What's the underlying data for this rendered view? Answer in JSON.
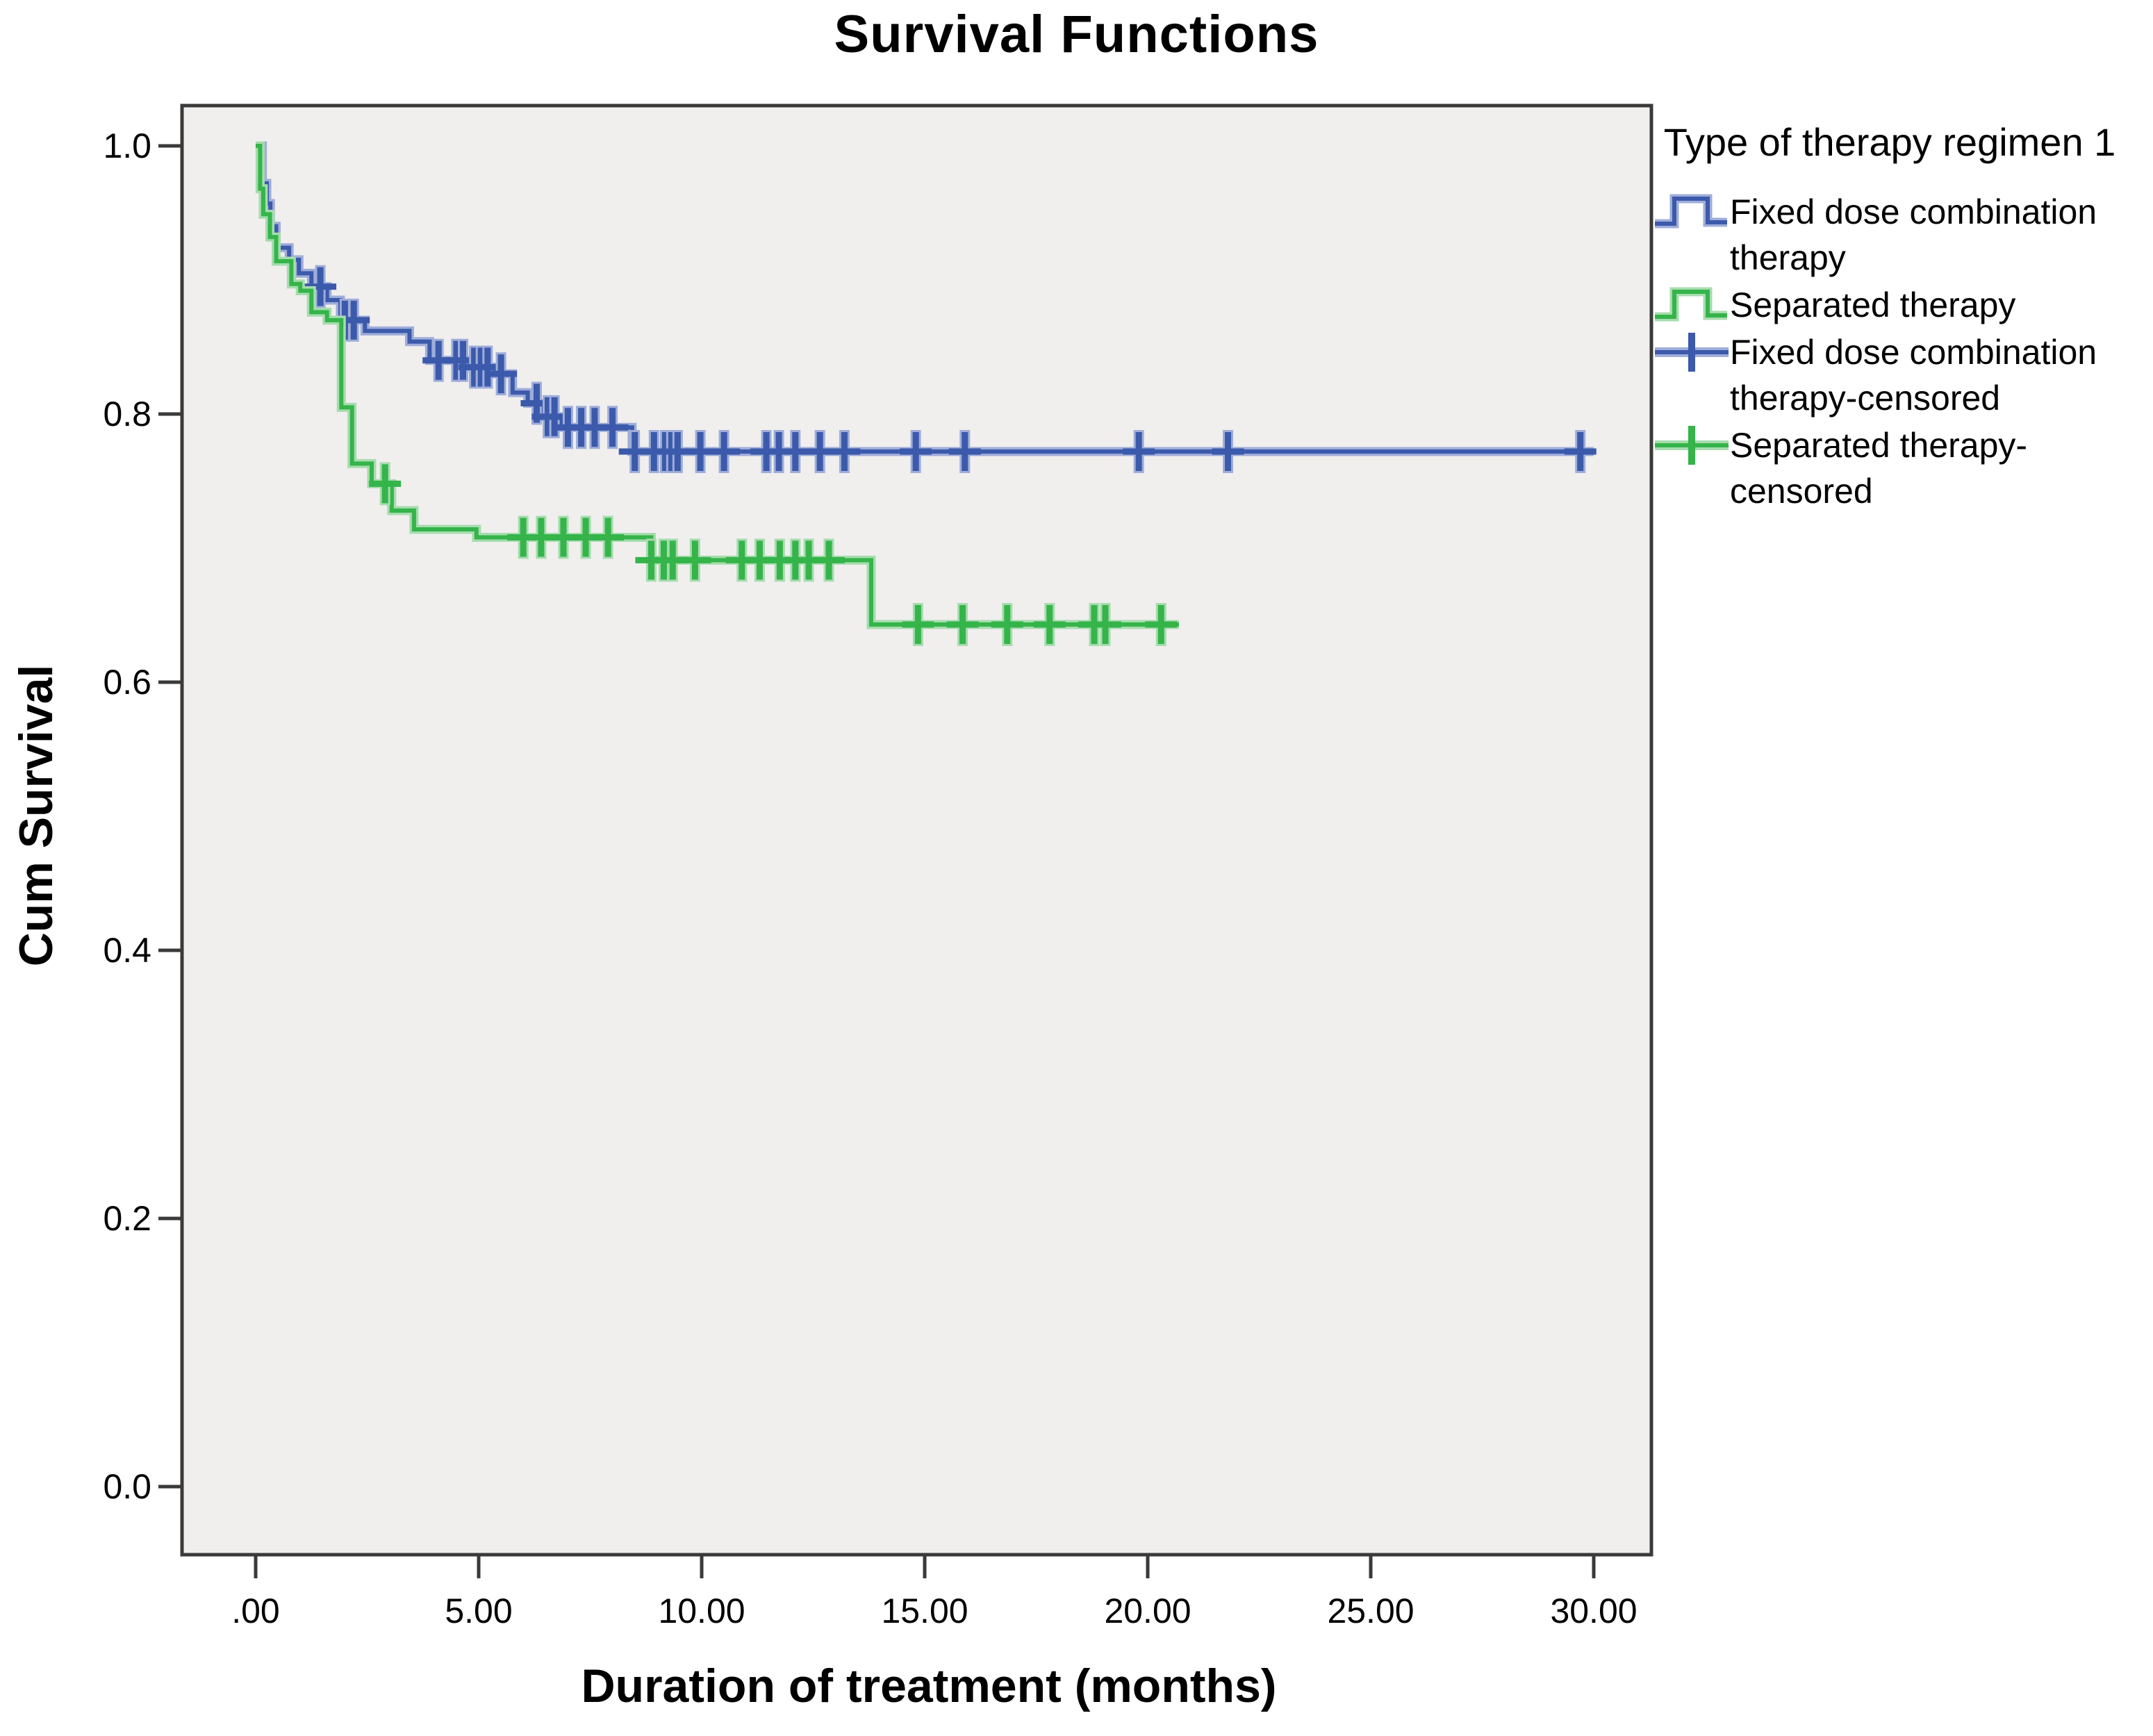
{
  "title": "Survival Functions",
  "axes": {
    "x_label": "Duration of treatment (months)",
    "y_label": "Cum Survival",
    "x_tick_labels": [
      ".00",
      "5.00",
      "10.00",
      "15.00",
      "20.00",
      "25.00",
      "30.00"
    ],
    "x_tick_values": [
      0,
      5,
      10,
      15,
      20,
      25,
      30
    ],
    "y_tick_labels": [
      "0.0",
      "0.2",
      "0.4",
      "0.6",
      "0.8",
      "1.0"
    ],
    "y_tick_values": [
      0,
      0.2,
      0.4,
      0.6,
      0.8,
      1.0
    ]
  },
  "legend": {
    "title": "Type of therapy regimen 1",
    "items": [
      {
        "label": "Fixed dose combination therapy",
        "glyph": "step-line",
        "series": 0
      },
      {
        "label": "Separated therapy",
        "glyph": "step-line",
        "series": 1
      },
      {
        "label": "Fixed dose combination therapy-censored",
        "glyph": "plus-marker",
        "series": 0
      },
      {
        "label": "Separated therapy-censored",
        "glyph": "plus-marker",
        "series": 1
      }
    ]
  },
  "colors": {
    "blue_core": "#3c5aab",
    "blue_halo": "#9fadd9",
    "green_core": "#35b44a",
    "green_halo": "#a6dcae",
    "frame": "#3a3a3a",
    "plot_bg": "#f0efee",
    "text": "#000000"
  },
  "chart_data": {
    "type": "line",
    "subtype": "kaplan-meier-step",
    "title": "Survival Functions",
    "xlabel": "Duration of treatment (months)",
    "ylabel": "Cum Survival",
    "xlim": [
      0,
      30
    ],
    "ylim": [
      0,
      1.0
    ],
    "x_ticks": [
      0,
      5,
      10,
      15,
      20,
      25,
      30
    ],
    "y_ticks": [
      0,
      0.2,
      0.4,
      0.6,
      0.8,
      1.0
    ],
    "grid": false,
    "legend_position": "right",
    "series": [
      {
        "name": "Fixed dose combination therapy",
        "color": "#3c5aab",
        "halo": "#9fadd9",
        "end_t": 30.0,
        "steps": [
          [
            0,
            1.0
          ],
          [
            0.15,
            0.972
          ],
          [
            0.25,
            0.957
          ],
          [
            0.33,
            0.94
          ],
          [
            0.46,
            0.924
          ],
          [
            0.75,
            0.915
          ],
          [
            0.97,
            0.905
          ],
          [
            1.25,
            0.895
          ],
          [
            1.6,
            0.885
          ],
          [
            1.9,
            0.87
          ],
          [
            2.45,
            0.862
          ],
          [
            3.45,
            0.854
          ],
          [
            3.9,
            0.84
          ],
          [
            4.8,
            0.835
          ],
          [
            5.35,
            0.83
          ],
          [
            5.76,
            0.816
          ],
          [
            6.1,
            0.808
          ],
          [
            6.45,
            0.798
          ],
          [
            6.85,
            0.79
          ],
          [
            8.44,
            0.772
          ]
        ],
        "censors": [
          [
            1.45,
            0.895
          ],
          [
            2.0,
            0.87
          ],
          [
            2.2,
            0.87
          ],
          [
            4.1,
            0.84
          ],
          [
            4.5,
            0.84
          ],
          [
            4.65,
            0.84
          ],
          [
            4.9,
            0.835
          ],
          [
            5.05,
            0.835
          ],
          [
            5.2,
            0.835
          ],
          [
            5.5,
            0.83
          ],
          [
            6.3,
            0.808
          ],
          [
            6.55,
            0.798
          ],
          [
            6.7,
            0.798
          ],
          [
            7.0,
            0.79
          ],
          [
            7.3,
            0.79
          ],
          [
            7.6,
            0.79
          ],
          [
            8.0,
            0.79
          ],
          [
            8.5,
            0.772
          ],
          [
            8.93,
            0.772
          ],
          [
            9.18,
            0.772
          ],
          [
            9.32,
            0.772
          ],
          [
            9.46,
            0.772
          ],
          [
            9.97,
            0.772
          ],
          [
            10.5,
            0.772
          ],
          [
            11.45,
            0.772
          ],
          [
            11.73,
            0.772
          ],
          [
            12.1,
            0.772
          ],
          [
            12.65,
            0.772
          ],
          [
            13.2,
            0.772
          ],
          [
            14.8,
            0.772
          ],
          [
            15.9,
            0.772
          ],
          [
            19.8,
            0.772
          ],
          [
            21.8,
            0.772
          ],
          [
            29.7,
            0.772
          ]
        ]
      },
      {
        "name": "Separated therapy",
        "color": "#35b44a",
        "halo": "#a6dcae",
        "end_t": 20.7,
        "steps": [
          [
            0,
            1.0
          ],
          [
            0.1,
            0.968
          ],
          [
            0.17,
            0.949
          ],
          [
            0.32,
            0.932
          ],
          [
            0.46,
            0.914
          ],
          [
            0.8,
            0.897
          ],
          [
            1.0,
            0.892
          ],
          [
            1.25,
            0.876
          ],
          [
            1.6,
            0.87
          ],
          [
            1.92,
            0.805
          ],
          [
            2.16,
            0.763
          ],
          [
            2.6,
            0.748
          ],
          [
            3.05,
            0.728
          ],
          [
            3.55,
            0.714
          ],
          [
            4.95,
            0.708
          ],
          [
            8.87,
            0.691
          ],
          [
            13.8,
            0.643
          ]
        ],
        "censors": [
          [
            2.9,
            0.748
          ],
          [
            6.0,
            0.708
          ],
          [
            6.4,
            0.708
          ],
          [
            6.9,
            0.708
          ],
          [
            7.4,
            0.708
          ],
          [
            7.9,
            0.708
          ],
          [
            8.87,
            0.691
          ],
          [
            9.15,
            0.691
          ],
          [
            9.35,
            0.691
          ],
          [
            9.85,
            0.691
          ],
          [
            10.9,
            0.691
          ],
          [
            11.3,
            0.691
          ],
          [
            11.75,
            0.691
          ],
          [
            12.1,
            0.691
          ],
          [
            12.4,
            0.691
          ],
          [
            12.85,
            0.691
          ],
          [
            14.85,
            0.643
          ],
          [
            15.85,
            0.643
          ],
          [
            16.85,
            0.643
          ],
          [
            17.8,
            0.643
          ],
          [
            18.8,
            0.643
          ],
          [
            19.05,
            0.643
          ],
          [
            20.3,
            0.643
          ]
        ]
      }
    ]
  }
}
